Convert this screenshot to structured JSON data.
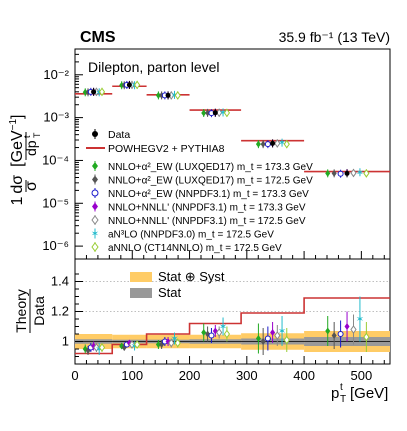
{
  "header": {
    "experiment": "CMS",
    "lumi": "35.9 fb⁻¹ (13 TeV)",
    "region": "Dilepton, parton level"
  },
  "chart_data": [
    {
      "type": "scatter",
      "panel": "upper",
      "ylabel": "1/σ dσ/dp_T^t [GeV⁻¹]",
      "yscale": "log",
      "ylim": [
        5e-07,
        0.04
      ],
      "xlim": [
        0,
        550
      ],
      "bins": [
        [
          0,
          65
        ],
        [
          65,
          125
        ],
        [
          125,
          200
        ],
        [
          200,
          290
        ],
        [
          290,
          400
        ],
        [
          400,
          550
        ]
      ],
      "x_centers": [
        30,
        95,
        162,
        245,
        345,
        475
      ],
      "y_ticklabels": [
        "10⁻²",
        "10⁻³",
        "10⁻⁴",
        "10⁻⁵",
        "10⁻⁶"
      ],
      "data": {
        "name": "Data",
        "values": [
          0.004,
          0.0058,
          0.0033,
          0.0013,
          0.00025,
          5e-05
        ]
      },
      "powheg": {
        "name": "POWHEGV2 + PYTHIA8",
        "values": [
          0.0036,
          0.0054,
          0.0034,
          0.0015,
          0.00029,
          5.5e-05
        ]
      },
      "series": [
        {
          "name": "NNLO+α²_EW (LUXQED17) m_t = 173.3 GeV",
          "color": "#22aa22",
          "marker": "diamond-filled",
          "values": [
            0.0039,
            0.0057,
            0.0033,
            0.00128,
            0.00024,
            5e-05
          ]
        },
        {
          "name": "NNLO+α²_EW (LUXQED17) m_t = 172.5 GeV",
          "color": "#555555",
          "marker": "diamond-filled",
          "values": [
            0.0039,
            0.0057,
            0.0033,
            0.00129,
            0.00024,
            5e-05
          ]
        },
        {
          "name": "NNLO+α²_EW (NNPDF3.1) m_t = 173.3 GeV",
          "color": "#1a1acc",
          "marker": "circle-open",
          "values": [
            0.004,
            0.0058,
            0.0033,
            0.00127,
            0.00024,
            4.9e-05
          ]
        },
        {
          "name": "NNLO+NNLL' (NNPDF3.1) m_t = 173.3 GeV",
          "color": "#9900cc",
          "marker": "diamond-filled",
          "values": [
            0.004,
            0.0058,
            0.0033,
            0.0013,
            0.00025,
            5.1e-05
          ]
        },
        {
          "name": "NNLO+NNLL' (NNPDF3.1) m_t = 172.5 GeV",
          "color": "#888888",
          "marker": "diamond-open",
          "values": [
            0.004,
            0.0058,
            0.0033,
            0.0013,
            0.00025,
            5.1e-05
          ]
        },
        {
          "name": "aN³LO (NNPDF3.0) m_t = 172.5 GeV",
          "color": "#22bbcc",
          "marker": "star",
          "values": [
            0.0039,
            0.0057,
            0.0034,
            0.00132,
            0.00026,
            5.3e-05
          ]
        },
        {
          "name": "aNNLO (CT14NNLO) m_t = 172.5 GeV",
          "color": "#99cc33",
          "marker": "diamond-open",
          "values": [
            0.004,
            0.0058,
            0.0033,
            0.00129,
            0.00024,
            5e-05
          ]
        }
      ]
    },
    {
      "type": "scatter",
      "panel": "lower",
      "ylabel": "Theory / Data",
      "ylim": [
        0.85,
        1.55
      ],
      "xlim": [
        0,
        550
      ],
      "xlabel": "p_T^t [GeV]",
      "x_ticklabels": [
        "0",
        "100",
        "200",
        "300",
        "400",
        "500"
      ],
      "y_ticklabels": [
        "1",
        "1.2",
        "1.4"
      ],
      "legend": [
        "Stat ⊕ Syst",
        "Stat"
      ],
      "bands": [
        {
          "bin": [
            0,
            65
          ],
          "stat_syst": 0.05,
          "stat": 0.015
        },
        {
          "bin": [
            65,
            125
          ],
          "stat_syst": 0.045,
          "stat": 0.012
        },
        {
          "bin": [
            125,
            200
          ],
          "stat_syst": 0.045,
          "stat": 0.012
        },
        {
          "bin": [
            200,
            290
          ],
          "stat_syst": 0.045,
          "stat": 0.015
        },
        {
          "bin": [
            290,
            400
          ],
          "stat_syst": 0.055,
          "stat": 0.02
        },
        {
          "bin": [
            400,
            550
          ],
          "stat_syst": 0.07,
          "stat": 0.03
        }
      ],
      "powheg": [
        0.92,
        0.98,
        1.05,
        1.12,
        1.19,
        1.29
      ],
      "series": [
        {
          "values": [
            0.95,
            0.97,
            0.98,
            1.06,
            1.02,
            1.07
          ],
          "errors": [
            0.03,
            0.02,
            0.03,
            0.06,
            0.1,
            0.1
          ]
        },
        {
          "values": [
            0.94,
            0.96,
            0.98,
            1.05,
            1.0,
            1.04
          ],
          "errors": [
            0.03,
            0.02,
            0.03,
            0.05,
            0.09,
            0.09
          ]
        },
        {
          "values": [
            0.96,
            0.98,
            1.0,
            1.04,
            1.02,
            1.05
          ],
          "errors": [
            0.03,
            0.02,
            0.03,
            0.05,
            0.08,
            0.09
          ]
        },
        {
          "values": [
            0.97,
            0.99,
            1.0,
            1.07,
            1.06,
            1.1
          ],
          "errors": [
            0.03,
            0.02,
            0.03,
            0.04,
            0.07,
            0.1
          ]
        },
        {
          "values": [
            0.96,
            0.98,
            0.99,
            1.06,
            1.04,
            1.08
          ],
          "errors": [
            0.03,
            0.02,
            0.03,
            0.04,
            0.07,
            0.1
          ]
        },
        {
          "values": [
            0.95,
            0.97,
            1.02,
            1.1,
            1.07,
            1.15
          ],
          "errors": [
            0.04,
            0.03,
            0.04,
            0.06,
            0.1,
            0.15
          ]
        },
        {
          "values": [
            0.96,
            0.98,
            0.99,
            1.05,
            1.01,
            1.03
          ],
          "errors": [
            0.03,
            0.02,
            0.03,
            0.05,
            0.08,
            0.1
          ]
        }
      ]
    }
  ]
}
